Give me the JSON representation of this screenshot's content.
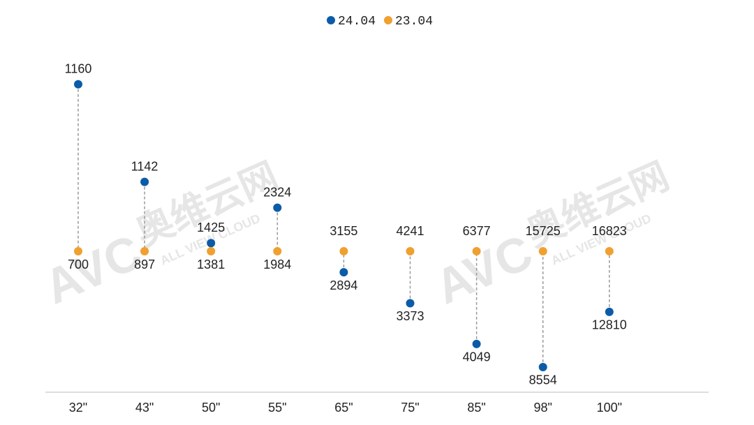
{
  "chart_data": {
    "type": "dumbbell",
    "categories": [
      "32\"",
      "43\"",
      "50\"",
      "55\"",
      "65\"",
      "75\"",
      "85\"",
      "98\"",
      "100\""
    ],
    "series": [
      {
        "name": "24.04",
        "color": "#0b5ca8",
        "values": [
          1160,
          1142,
          1425,
          2324,
          2894,
          3373,
          4049,
          8554,
          12810
        ]
      },
      {
        "name": "23.04",
        "color": "#f0a030",
        "values": [
          700,
          897,
          1381,
          1984,
          3155,
          4241,
          6377,
          15725,
          16823
        ]
      }
    ],
    "watermark": {
      "logo": "AVC",
      "name": "奥维云网",
      "tagline": "ALL VIEW CLOUD"
    }
  }
}
